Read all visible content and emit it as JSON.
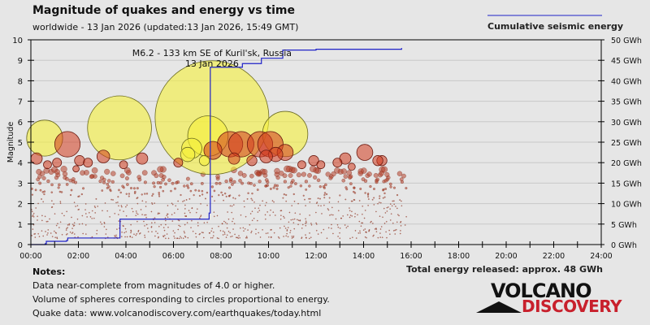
{
  "header": {
    "title": "Magnitude of quakes and energy vs time",
    "subtitle": "worldwide - 13 Jan 2026 (updated:13 Jan 2026, 15:49 GMT)",
    "legend": "Cumulative seismic energy"
  },
  "notes": {
    "heading": "Notes:",
    "lines": [
      "Data near-complete from magnitudes of 4.0 or higher.",
      "Volume of spheres corresponding to circles proportional to energy.",
      "Quake data: www.volcanodiscovery.com/earthquakes/today.html"
    ]
  },
  "total": "Total energy released: approx. 48 GWh",
  "logo": {
    "line1": "VOLCANO",
    "line2": "DISCOVERY"
  },
  "colors": {
    "energy": "#1f22c8",
    "yellow": "#f5f03a",
    "red": "#d23a1e",
    "axis": "#000000"
  },
  "chart_data": {
    "type": "scatter",
    "title": "Magnitude of quakes and energy vs time",
    "ylabel": "Magnitude",
    "y2label": "GWh",
    "xlim": [
      0,
      24
    ],
    "ylim": [
      0,
      10
    ],
    "y2lim": [
      0,
      50
    ],
    "xticks": [
      "00:00",
      "02:00",
      "04:00",
      "06:00",
      "08:00",
      "10:00",
      "12:00",
      "14:00",
      "16:00",
      "18:00",
      "20:00",
      "22:00",
      "24:00"
    ],
    "yticks": [
      "0",
      "1",
      "2",
      "3",
      "4",
      "5",
      "6",
      "7",
      "8",
      "9",
      "10"
    ],
    "y2ticks": [
      "0 GWh",
      "5 GWh",
      "10 GWh",
      "15 GWh",
      "20 GWh",
      "25 GWh",
      "30 GWh",
      "35 GWh",
      "40 GWh",
      "45 GWh",
      "50 GWh"
    ],
    "annotation": {
      "text": "M6.2 - 133 km SE of Kuril'sk, Russia",
      "date": "13 Jan 2026",
      "time": 7.62,
      "mag": 6.2
    },
    "quakes": [
      {
        "t": 0.58,
        "m": 5.2,
        "c": "yellow"
      },
      {
        "t": 3.73,
        "m": 5.7,
        "c": "yellow"
      },
      {
        "t": 7.62,
        "m": 6.2,
        "c": "yellow"
      },
      {
        "t": 10.7,
        "m": 5.4,
        "c": "yellow"
      },
      {
        "t": 7.45,
        "m": 5.3,
        "c": "yellow"
      },
      {
        "t": 6.77,
        "m": 4.7,
        "c": "yellow"
      },
      {
        "t": 6.6,
        "m": 4.4,
        "c": "yellow"
      },
      {
        "t": 7.3,
        "m": 4.1,
        "c": "yellow"
      },
      {
        "t": 1.54,
        "m": 4.9,
        "c": "red"
      },
      {
        "t": 8.38,
        "m": 4.9,
        "c": "red"
      },
      {
        "t": 8.85,
        "m": 4.9,
        "c": "red"
      },
      {
        "t": 9.64,
        "m": 4.9,
        "c": "red"
      },
      {
        "t": 10.08,
        "m": 4.9,
        "c": "red"
      },
      {
        "t": 10.7,
        "m": 4.5,
        "c": "red"
      },
      {
        "t": 7.66,
        "m": 4.6,
        "c": "red"
      },
      {
        "t": 14.05,
        "m": 4.5,
        "c": "red"
      },
      {
        "t": 13.23,
        "m": 4.2,
        "c": "red"
      },
      {
        "t": 14.77,
        "m": 4.1,
        "c": "red"
      },
      {
        "t": 0.24,
        "m": 4.2,
        "c": "red"
      },
      {
        "t": 3.05,
        "m": 4.3,
        "c": "red"
      },
      {
        "t": 4.68,
        "m": 4.2,
        "c": "red"
      },
      {
        "t": 2.05,
        "m": 4.1,
        "c": "red"
      },
      {
        "t": 1.1,
        "m": 4.0,
        "c": "red"
      },
      {
        "t": 8.55,
        "m": 4.2,
        "c": "red"
      },
      {
        "t": 9.9,
        "m": 4.3,
        "c": "red"
      },
      {
        "t": 11.9,
        "m": 4.1,
        "c": "red"
      },
      {
        "t": 11.4,
        "m": 3.9,
        "c": "red"
      },
      {
        "t": 12.9,
        "m": 4.0,
        "c": "red"
      },
      {
        "t": 14.6,
        "m": 4.1,
        "c": "red"
      },
      {
        "t": 3.9,
        "m": 3.9,
        "c": "red"
      },
      {
        "t": 2.4,
        "m": 4.0,
        "c": "red"
      },
      {
        "t": 0.7,
        "m": 3.9,
        "c": "red"
      },
      {
        "t": 9.3,
        "m": 4.1,
        "c": "red"
      },
      {
        "t": 10.3,
        "m": 4.4,
        "c": "red"
      },
      {
        "t": 6.2,
        "m": 4.0,
        "c": "red"
      },
      {
        "t": 12.2,
        "m": 3.9,
        "c": "red"
      },
      {
        "t": 13.5,
        "m": 3.8,
        "c": "red"
      },
      {
        "t": 1.9,
        "m": 3.7,
        "c": "red"
      }
    ],
    "energy": [
      [
        0,
        0
      ],
      [
        0.6,
        0.2
      ],
      [
        0.65,
        0.8
      ],
      [
        1.5,
        1.0
      ],
      [
        1.55,
        1.6
      ],
      [
        3.7,
        1.6
      ],
      [
        3.75,
        6.2
      ],
      [
        7.5,
        7.7
      ],
      [
        7.55,
        43.3
      ],
      [
        8.9,
        44.2
      ],
      [
        9.7,
        45.5
      ],
      [
        10.6,
        47.5
      ],
      [
        12,
        47.7
      ],
      [
        15.6,
        48
      ]
    ]
  }
}
